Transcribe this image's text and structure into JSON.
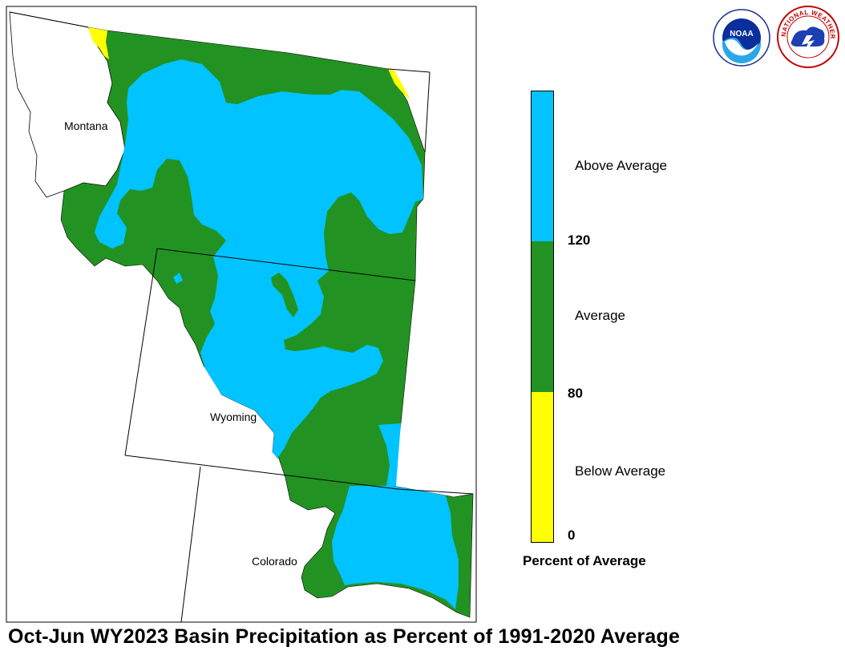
{
  "title": "Oct-Jun WY2023 Basin Precipitation as Percent of 1991-2020 Average",
  "map": {
    "states": [
      {
        "name": "Montana"
      },
      {
        "name": "Wyoming"
      },
      {
        "name": "Colorado"
      }
    ]
  },
  "legend": {
    "title": "Percent of Average",
    "categories": [
      {
        "label": "Above Average",
        "color": "#00c3ff"
      },
      {
        "label": "Average",
        "color": "#229322"
      },
      {
        "label": "Below Average",
        "color": "#ffff00"
      }
    ],
    "ticks": [
      "120",
      "80",
      "0"
    ]
  },
  "logos": {
    "noaa": {
      "text": "NOAA"
    },
    "nws": {
      "text": "NATIONAL WEATHER SERVICE"
    }
  }
}
